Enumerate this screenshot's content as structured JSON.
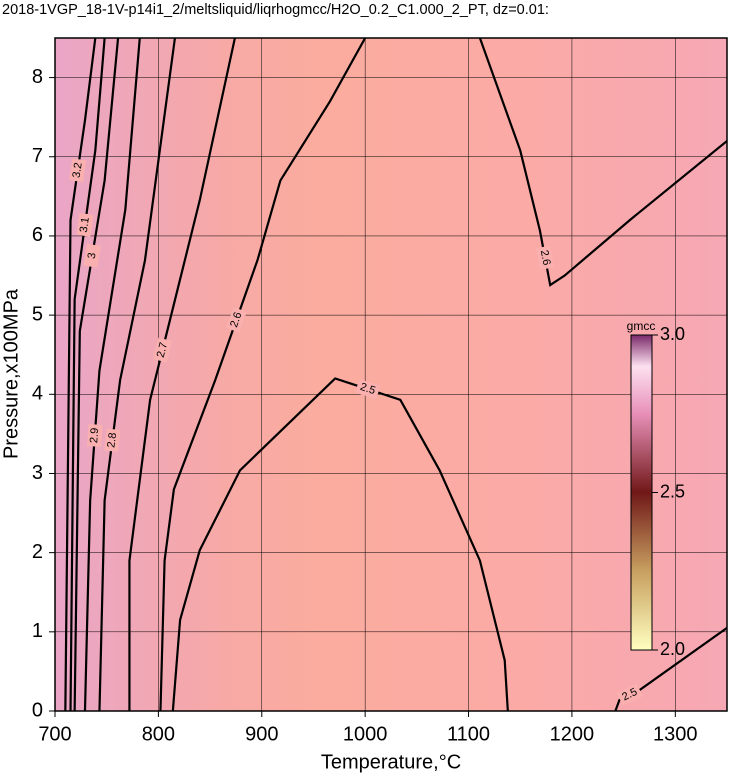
{
  "chart_data": {
    "type": "contour",
    "title": "2018-1VGP_18-1V-p14i1_2/meltsliquid/liqrhogmcc/H2O_0.2_C1.000_2_PT, dz=0.01:",
    "x_label": "Temperature,°C",
    "y_label": "Pressure,x100MPa",
    "xlim": [
      700,
      1350
    ],
    "xticks": [
      700,
      800,
      900,
      1000,
      1100,
      1200,
      1300
    ],
    "ylim": [
      0,
      8.5
    ],
    "yticks": [
      0,
      1,
      2,
      3,
      4,
      5,
      6,
      7,
      8
    ],
    "grid": true,
    "colorbar_label": "gmcc",
    "colorbar_lim": [
      2.0,
      3.0
    ],
    "colorbar_ticks": [
      {
        "value": 3.0,
        "label": "3.0"
      },
      {
        "value": 2.5,
        "label": "2.5"
      },
      {
        "value": 2.0,
        "label": "2.0"
      }
    ],
    "contours": [
      {
        "level": 2.5,
        "x": [
          814,
          821,
          840,
          879,
          971,
          1034,
          1072,
          1111,
          1135,
          1138
        ],
        "y": [
          0,
          1.15,
          2.03,
          3.04,
          4.2,
          3.93,
          3.04,
          1.9,
          0.64,
          0
        ]
      },
      {
        "level": 2.5,
        "x": [
          1242,
          1246,
          1266,
          1350
        ],
        "y": [
          0,
          0.14,
          0.27,
          1.05
        ]
      },
      {
        "level": 2.6,
        "x": [
          802,
          806,
          815,
          855,
          896,
          918,
          966,
          1000
        ],
        "y": [
          0,
          1.9,
          2.8,
          4.18,
          5.7,
          6.7,
          7.7,
          8.5
        ]
      },
      {
        "level": 2.6,
        "x": [
          1111,
          1150,
          1169,
          1179,
          1193,
          1256,
          1350
        ],
        "y": [
          8.5,
          7.08,
          6.07,
          5.38,
          5.5,
          6.2,
          7.2
        ]
      },
      {
        "level": 2.7,
        "x": [
          772,
          772,
          792,
          816,
          840,
          874
        ],
        "y": [
          0,
          1.9,
          3.93,
          5.19,
          6.45,
          8.5
        ]
      },
      {
        "level": 2.8,
        "x": [
          743,
          748,
          763,
          787,
          816
        ],
        "y": [
          0,
          2.66,
          4.18,
          5.69,
          8.5
        ]
      },
      {
        "level": 2.9,
        "x": [
          729,
          734,
          743,
          768,
          782
        ],
        "y": [
          0,
          2.66,
          4.3,
          6.33,
          8.5
        ]
      },
      {
        "level": 3,
        "x": [
          719,
          724,
          748,
          761
        ],
        "y": [
          0,
          4.8,
          6.7,
          8.5
        ]
      },
      {
        "level": 3.1,
        "x": [
          715,
          719,
          739,
          748
        ],
        "y": [
          0,
          5.2,
          7.08,
          8.5
        ]
      },
      {
        "level": 3.2,
        "x": [
          710,
          715,
          729,
          739
        ],
        "y": [
          0,
          6.2,
          7.46,
          8.5
        ]
      }
    ]
  }
}
